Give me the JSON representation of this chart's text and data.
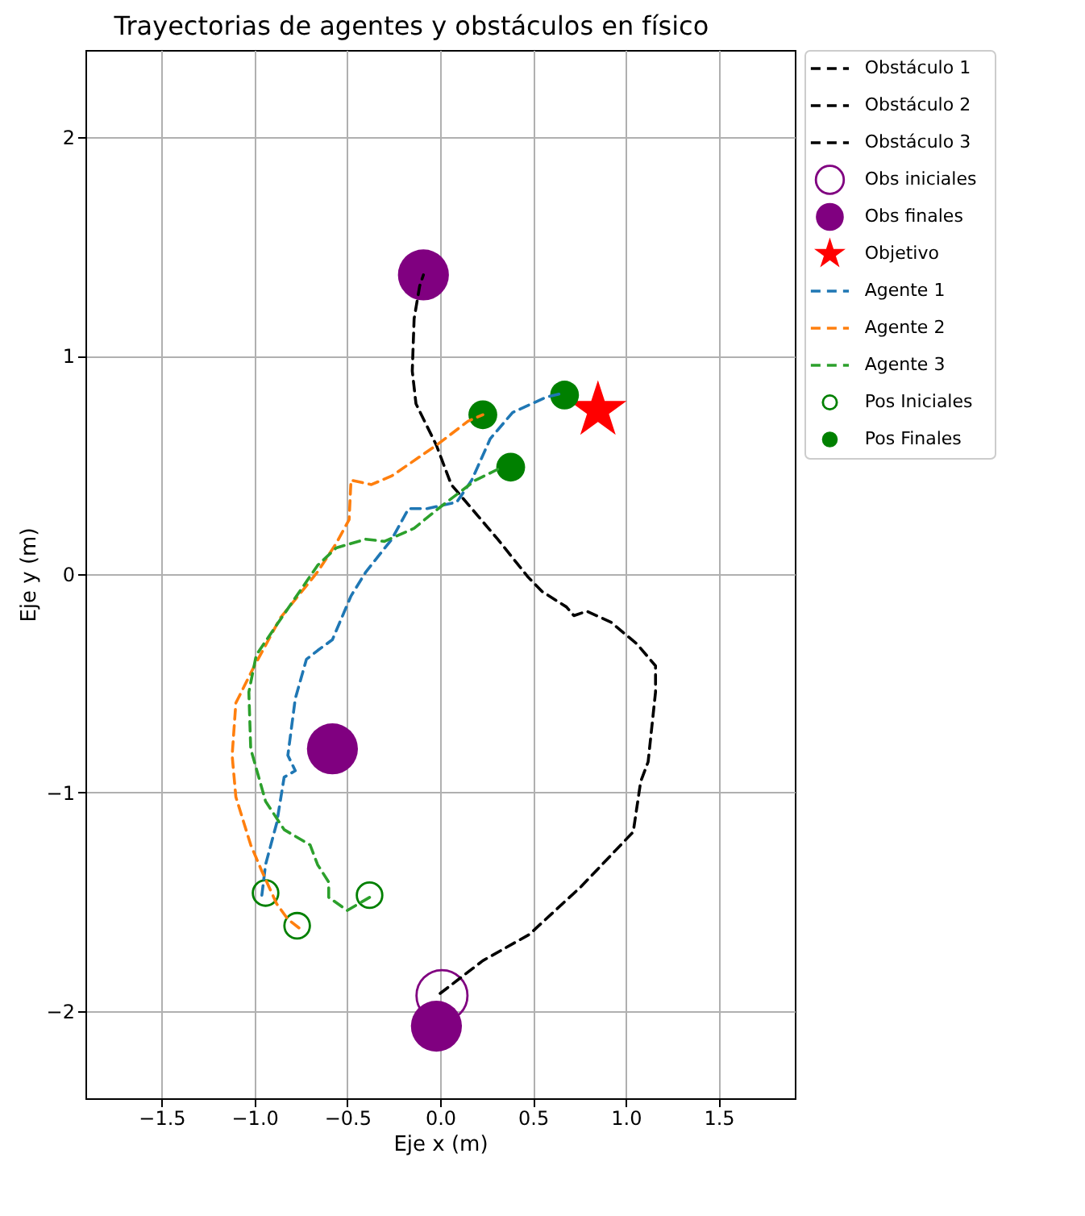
{
  "chart_data": {
    "type": "line",
    "title": "Trayectorias de agentes y obstáculos en físico",
    "xlabel": "Eje x (m)",
    "ylabel": "Eje y (m)",
    "xlim": [
      -1.91,
      1.91
    ],
    "ylim": [
      -2.4,
      2.4
    ],
    "xticks": [
      {
        "value": -1.5,
        "label": "−1.5"
      },
      {
        "value": -1.0,
        "label": "−1.0"
      },
      {
        "value": -0.5,
        "label": "−0.5"
      },
      {
        "value": 0,
        "label": "0.0"
      },
      {
        "value": 0.5,
        "label": "0.5"
      },
      {
        "value": 1.0,
        "label": "1.0"
      },
      {
        "value": 1.5,
        "label": "1.5"
      }
    ],
    "yticks": [
      {
        "value": -2,
        "label": "−2"
      },
      {
        "value": -1,
        "label": "−1"
      },
      0,
      1,
      2
    ],
    "grid": true,
    "legend": "right",
    "line_style": "dashed",
    "series": [
      {
        "name": "Obstáculo 1",
        "color": "#000000",
        "x": [
          0.0,
          0.23,
          0.48,
          0.76,
          1.04,
          1.08,
          1.12,
          1.16,
          1.16,
          1.06,
          0.92,
          0.79,
          0.72,
          0.68,
          0.55,
          0.47,
          0.31,
          0.17,
          0.06,
          -0.02,
          -0.13,
          -0.15,
          -0.14,
          -0.11,
          -0.09
        ],
        "values": [
          -1.92,
          -1.77,
          -1.65,
          -1.43,
          -1.18,
          -0.95,
          -0.86,
          -0.54,
          -0.42,
          -0.32,
          -0.22,
          -0.17,
          -0.19,
          -0.15,
          -0.08,
          -0.01,
          0.16,
          0.3,
          0.41,
          0.59,
          0.78,
          0.93,
          1.17,
          1.32,
          1.37
        ]
      },
      {
        "name": "Obstáculo 2",
        "color": "#000000",
        "x": [
          null
        ],
        "values": [
          null
        ]
      },
      {
        "name": "Obstáculo 3",
        "color": "#000000",
        "x": [
          null
        ],
        "values": [
          null
        ]
      },
      {
        "name": "Obs iniciales",
        "type": "scatter",
        "marker": "circle",
        "color": "#800080",
        "x": [
          0.01
        ],
        "values": [
          -1.93
        ],
        "sizes": [
          1
        ]
      },
      {
        "name": "Obs finales",
        "type": "scatter",
        "marker": "circle",
        "color": "#800080",
        "x": [
          -0.09,
          -0.58,
          -0.02
        ],
        "values": [
          1.37,
          -0.8,
          -2.07
        ],
        "sizes": [
          1,
          1,
          1
        ]
      },
      {
        "name": "Objetivo",
        "type": "scatter",
        "marker": "star",
        "color": "#ff0000",
        "x": [
          0.85
        ],
        "values": [
          0.75
        ],
        "sizes": [
          0.5
        ]
      },
      {
        "name": "Agente 1",
        "color": "#1f77b4",
        "x": [
          -0.96,
          -0.94,
          -0.88,
          -0.84,
          -0.78,
          -0.82,
          -0.78,
          -0.72,
          -0.66,
          -0.58,
          -0.48,
          -0.4,
          -0.26,
          -0.17,
          -0.07,
          0.09,
          0.17,
          0.27,
          0.39,
          0.57,
          0.67
        ],
        "values": [
          -1.47,
          -1.33,
          -1.14,
          -0.93,
          -0.9,
          -0.83,
          -0.57,
          -0.39,
          -0.35,
          -0.3,
          -0.1,
          0.01,
          0.16,
          0.3,
          0.3,
          0.33,
          0.43,
          0.62,
          0.74,
          0.81,
          0.83
        ]
      },
      {
        "name": "Agente 2",
        "color": "#ff7f0e",
        "x": [
          -0.76,
          -0.82,
          -0.88,
          -0.96,
          -1.02,
          -1.1,
          -1.12,
          -1.1,
          -1.0,
          -0.86,
          -0.66,
          -0.56,
          -0.49,
          -0.48,
          -0.37,
          -0.26,
          -0.02,
          0.15,
          0.23
        ],
        "values": [
          -1.62,
          -1.58,
          -1.51,
          -1.36,
          -1.24,
          -1.02,
          -0.83,
          -0.59,
          -0.42,
          -0.2,
          0.01,
          0.14,
          0.25,
          0.43,
          0.41,
          0.45,
          0.59,
          0.7,
          0.73
        ]
      },
      {
        "name": "Agente 3",
        "color": "#2ca02c",
        "x": [
          -0.38,
          -0.5,
          -0.6,
          -0.6,
          -0.66,
          -0.7,
          -0.84,
          -0.94,
          -1.02,
          -1.03,
          -0.99,
          -0.87,
          -0.66,
          -0.56,
          -0.4,
          -0.3,
          -0.14,
          -0.01,
          0.19,
          0.31
        ],
        "values": [
          -1.48,
          -1.54,
          -1.48,
          -1.41,
          -1.33,
          -1.24,
          -1.17,
          -1.04,
          -0.8,
          -0.54,
          -0.37,
          -0.22,
          0.04,
          0.12,
          0.16,
          0.15,
          0.21,
          0.3,
          0.43,
          0.48
        ]
      },
      {
        "name": "Pos Iniciales",
        "type": "scatter",
        "marker": "circle",
        "color": "#008000",
        "x": [
          -0.94,
          -0.77,
          -0.38
        ],
        "values": [
          -1.46,
          -1.61,
          -1.47
        ],
        "sizes": [
          0.25,
          0.25,
          0.25
        ]
      },
      {
        "name": "Pos Finales",
        "type": "scatter",
        "marker": "circle",
        "color": "#008000",
        "x": [
          0.67,
          0.23,
          0.38
        ],
        "values": [
          0.82,
          0.73,
          0.49
        ],
        "sizes": [
          0.32,
          0.32,
          0.32
        ]
      }
    ]
  }
}
